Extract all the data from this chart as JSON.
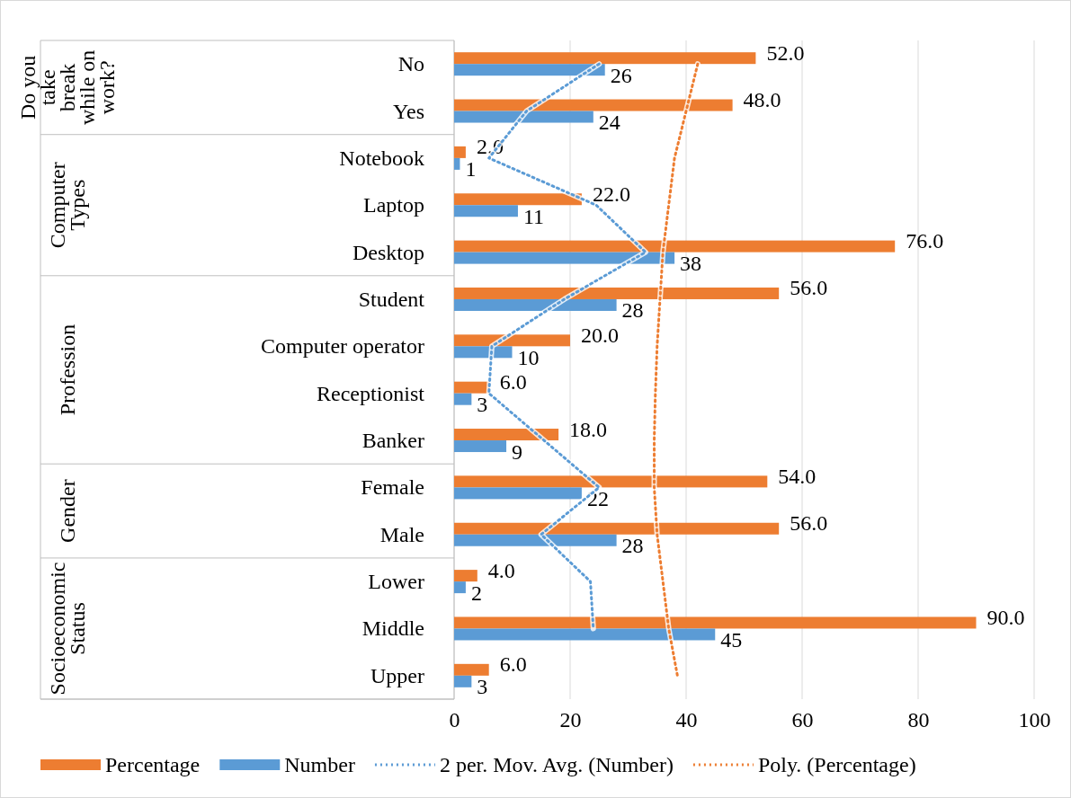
{
  "chart_data": {
    "type": "bar",
    "orientation": "horizontal",
    "categories": [
      "No",
      "Yes",
      "Notebook",
      "Laptop",
      "Desktop",
      "Student",
      "Computer operator",
      "Receptionist",
      "Banker",
      "Female",
      "Male",
      "Lower",
      "Middle",
      "Upper"
    ],
    "series": [
      {
        "name": "Percentage",
        "color": "#ed7d31",
        "values": [
          52,
          48,
          2,
          22,
          76,
          56,
          20,
          6,
          18,
          54,
          56,
          4,
          90,
          6
        ],
        "value_labels": [
          "52.0",
          "48.0",
          "2.0",
          "22.0",
          "76.0",
          "56.0",
          "20.0",
          "6.0",
          "18.0",
          "54.0",
          "56.0",
          "4.0",
          "90.0",
          "6.0"
        ]
      },
      {
        "name": "Number",
        "color": "#5b9bd5",
        "values": [
          26,
          24,
          1,
          11,
          38,
          28,
          10,
          3,
          9,
          22,
          28,
          2,
          45,
          3
        ],
        "value_labels": [
          "26",
          "24",
          "1",
          "11",
          "38",
          "28",
          "10",
          "3",
          "9",
          "22",
          "28",
          "2",
          "45",
          "3"
        ]
      },
      {
        "name": "2 per. Mov. Avg. (Number)",
        "type": "line",
        "line_style": "dotted",
        "color": "#5b9bd5",
        "values": [
          25,
          12.5,
          6,
          24.5,
          33,
          19,
          6.5,
          6,
          15.5,
          25,
          15,
          23.5,
          24,
          null
        ]
      },
      {
        "name": "Poly. (Percentage)",
        "type": "line",
        "line_style": "dotted",
        "color": "#ed7d31",
        "values": [
          42,
          40,
          38,
          37,
          36,
          35.5,
          35,
          34.7,
          34.5,
          34.5,
          35,
          36,
          37,
          38.5
        ]
      }
    ],
    "xlim": [
      0,
      100
    ],
    "xticks": [
      0,
      20,
      40,
      60,
      80,
      100
    ],
    "grid": "x",
    "legend": "bottom",
    "annotations": [
      "Do you take break while on work?",
      "Computer Types",
      "Profession",
      "Gender",
      "Socioeconomic Status"
    ]
  }
}
